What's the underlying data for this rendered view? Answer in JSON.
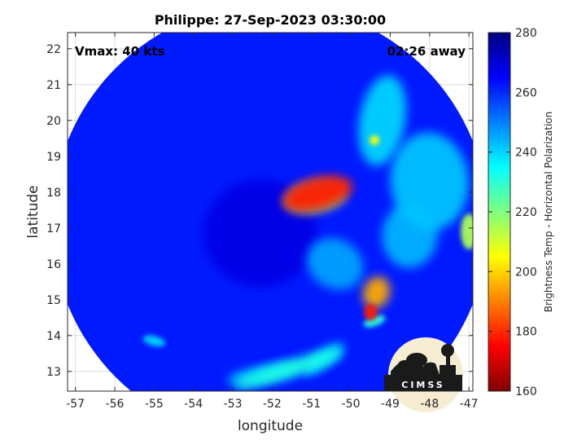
{
  "chart_data": {
    "type": "heatmap",
    "title": "Philippe: 27-Sep-2023 03:30:00",
    "xlabel": "longitude",
    "ylabel": "latitude",
    "xlim": [
      -57.2,
      -46.9
    ],
    "ylim": [
      12.45,
      22.45
    ],
    "xticks": [
      -57,
      -56,
      -55,
      -54,
      -53,
      -52,
      -51,
      -50,
      -49,
      -48,
      -47
    ],
    "yticks": [
      13,
      14,
      15,
      16,
      17,
      18,
      19,
      20,
      21,
      22
    ],
    "grid": true,
    "annotations": {
      "vmax": "Vmax: 40 kts",
      "time_away": "02:26 away"
    },
    "swath": {
      "center_lon": -52.05,
      "center_lat": 17.15,
      "radius_deg": 5.55
    },
    "colorbar": {
      "label": "Brightness Temp - Horizontal Polarization",
      "range": [
        160,
        280
      ],
      "ticks": [
        160,
        180,
        200,
        220,
        240,
        260,
        280
      ],
      "colormap": "jet"
    },
    "background_value": 262,
    "features": [
      {
        "desc": "cold core",
        "lon": -50.85,
        "lat": 17.95,
        "tb": 178
      },
      {
        "desc": "cold core ring",
        "lon": -50.9,
        "lat": 17.85,
        "tb": 222
      },
      {
        "desc": "band south",
        "lon": -49.35,
        "lat": 15.2,
        "tb": 195
      },
      {
        "desc": "band south spot",
        "lon": -49.5,
        "lat": 14.65,
        "tb": 178
      },
      {
        "desc": "band south tail",
        "lon": -49.4,
        "lat": 14.4,
        "tb": 230
      },
      {
        "desc": "southern arc",
        "lon": -51.6,
        "lat": 13.05,
        "tb": 232
      },
      {
        "desc": "southern arc west",
        "lon": -52.2,
        "lat": 12.95,
        "tb": 240
      },
      {
        "desc": "southern arc east",
        "lon": -50.7,
        "lat": 13.35,
        "tb": 238
      },
      {
        "desc": "west cell",
        "lon": -55.0,
        "lat": 13.85,
        "tb": 240
      },
      {
        "desc": "northeast cell",
        "lon": -49.4,
        "lat": 19.45,
        "tb": 205
      },
      {
        "desc": "northeast band",
        "lon": -49.2,
        "lat": 20.0,
        "tb": 240
      },
      {
        "desc": "east band",
        "lon": -48.0,
        "lat": 18.3,
        "tb": 242
      },
      {
        "desc": "east band south",
        "lon": -48.5,
        "lat": 16.8,
        "tb": 244
      },
      {
        "desc": "far east edge",
        "lon": -47.0,
        "lat": 16.9,
        "tb": 215
      },
      {
        "desc": "inner band",
        "lon": -50.4,
        "lat": 16.0,
        "tb": 246
      },
      {
        "desc": "eye",
        "lon": -52.3,
        "lat": 16.85,
        "tb": 268
      }
    ]
  },
  "logo": {
    "text": "CIMSS"
  }
}
